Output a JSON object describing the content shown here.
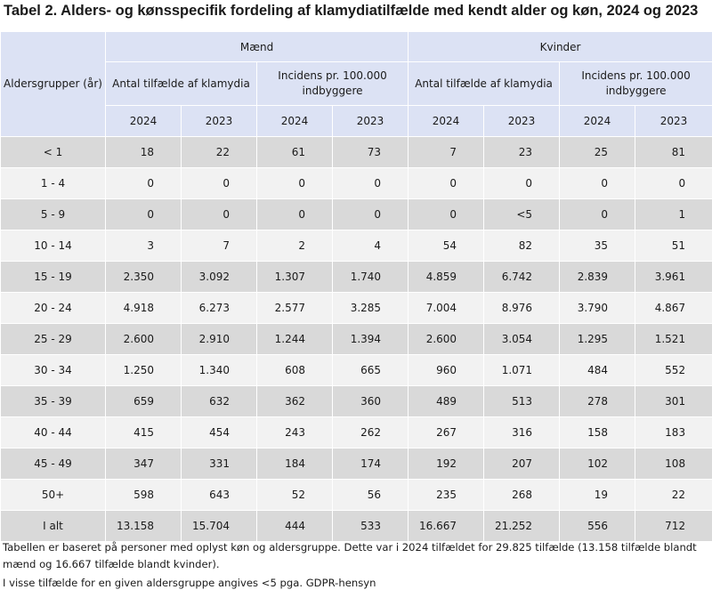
{
  "title": "Tabel 2. Alders- og kønsspecifik fordeling af klamydiatilfælde med kendt alder og køn, 2024 og 2023",
  "header": {
    "age_group": "Aldersgrupper (år)",
    "men": "Mænd",
    "women": "Kvinder",
    "cases": "Antal tilfælde af klamydia",
    "incidence": "Incidens pr. 100.000 indbyggere",
    "year_a": "2024",
    "year_b": "2023"
  },
  "rows": [
    {
      "age": "< 1",
      "values": [
        "18",
        "22",
        "61",
        "73",
        "7",
        "23",
        "25",
        "81"
      ]
    },
    {
      "age": "1 - 4",
      "values": [
        "0",
        "0",
        "0",
        "0",
        "0",
        "0",
        "0",
        "0"
      ]
    },
    {
      "age": "5 - 9",
      "values": [
        "0",
        "0",
        "0",
        "0",
        "0",
        "<5",
        "0",
        "1"
      ]
    },
    {
      "age": "10 - 14",
      "values": [
        "3",
        "7",
        "2",
        "4",
        "54",
        "82",
        "35",
        "51"
      ]
    },
    {
      "age": "15 - 19",
      "values": [
        "2.350",
        "3.092",
        "1.307",
        "1.740",
        "4.859",
        "6.742",
        "2.839",
        "3.961"
      ]
    },
    {
      "age": "20 - 24",
      "values": [
        "4.918",
        "6.273",
        "2.577",
        "3.285",
        "7.004",
        "8.976",
        "3.790",
        "4.867"
      ]
    },
    {
      "age": "25 - 29",
      "values": [
        "2.600",
        "2.910",
        "1.244",
        "1.394",
        "2.600",
        "3.054",
        "1.295",
        "1.521"
      ]
    },
    {
      "age": "30 - 34",
      "values": [
        "1.250",
        "1.340",
        "608",
        "665",
        "960",
        "1.071",
        "484",
        "552"
      ]
    },
    {
      "age": "35 - 39",
      "values": [
        "659",
        "632",
        "362",
        "360",
        "489",
        "513",
        "278",
        "301"
      ]
    },
    {
      "age": "40 - 44",
      "values": [
        "415",
        "454",
        "243",
        "262",
        "267",
        "316",
        "158",
        "183"
      ]
    },
    {
      "age": "45 - 49",
      "values": [
        "347",
        "331",
        "184",
        "174",
        "192",
        "207",
        "102",
        "108"
      ]
    },
    {
      "age": "50+",
      "values": [
        "598",
        "643",
        "52",
        "56",
        "235",
        "268",
        "19",
        "22"
      ]
    },
    {
      "age": "I alt",
      "values": [
        "13.158",
        "15.704",
        "444",
        "533",
        "16.667",
        "21.252",
        "556",
        "712"
      ]
    }
  ],
  "notes": [
    "Tabellen er baseret på personer med oplyst køn og aldersgruppe. Dette var i 2024 tilfældet for 29.825 tilfælde (13.158 tilfælde blandt mænd og 16.667 tilfælde blandt kvinder).",
    "I visse tilfælde for en given aldersgruppe angives <5 pga. GDPR-hensyn"
  ]
}
